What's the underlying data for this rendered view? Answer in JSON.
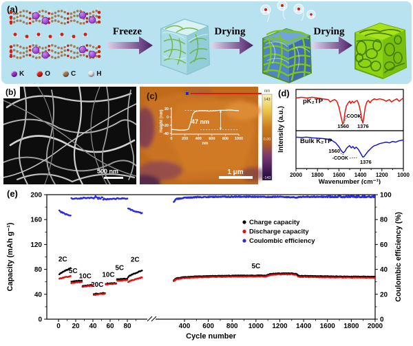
{
  "panel_a": {
    "label": "(a)",
    "steps": [
      "Freeze",
      "Drying",
      "Drying"
    ],
    "legend": [
      {
        "element": "K",
        "color": "#9a2fd6"
      },
      {
        "element": "O",
        "color": "#e8220f"
      },
      {
        "element": "C",
        "color": "#a57a52"
      },
      {
        "element": "H",
        "color": "#e4e4e4"
      }
    ]
  },
  "panel_b": {
    "label": "(b)",
    "scale_bar": "500 nm"
  },
  "panel_c": {
    "label": "(c)",
    "scale_bar": "1 μm",
    "colorbar": {
      "unit": "nm",
      "max": "143",
      "mid": "0.00",
      "min": "-143"
    },
    "inset_chart_data": {
      "type": "line",
      "xlabel": "nm",
      "ylabel": "Height (nm)",
      "xticks": [
        0,
        200,
        400,
        600,
        800,
        1000
      ],
      "yticks": [
        20,
        0,
        -20,
        -40
      ],
      "annotation": "47 nm",
      "profile": [
        [
          0,
          -30
        ],
        [
          60,
          -31
        ],
        [
          120,
          -32
        ],
        [
          180,
          -32
        ],
        [
          230,
          -31
        ],
        [
          255,
          -29
        ],
        [
          285,
          -14
        ],
        [
          315,
          6
        ],
        [
          345,
          13
        ],
        [
          420,
          15
        ],
        [
          500,
          15
        ],
        [
          560,
          14
        ],
        [
          640,
          15
        ],
        [
          720,
          16
        ],
        [
          800,
          16
        ],
        [
          860,
          17
        ],
        [
          920,
          16
        ],
        [
          1000,
          15
        ]
      ]
    }
  },
  "panel_d": {
    "label": "(d)",
    "chart_data": {
      "type": "line",
      "xlabel": "Wavenumber (cm⁻¹)",
      "ylabel": "Intensity (a.u.)",
      "xticks": [
        2000,
        1800,
        1600,
        1400,
        1200,
        1000
      ],
      "x_range": [
        2000,
        1000
      ],
      "series": [
        {
          "name": "pK₂TP",
          "color": "#e0150a",
          "peaks": [
            1560,
            1376
          ],
          "peak_labels": [
            "1560",
            "1376"
          ],
          "group_label": "-COOK",
          "points": [
            [
              2000,
              0.22
            ],
            [
              1950,
              0.2
            ],
            [
              1900,
              0.22
            ],
            [
              1850,
              0.2
            ],
            [
              1800,
              0.22
            ],
            [
              1750,
              0.24
            ],
            [
              1700,
              0.26
            ],
            [
              1680,
              0.32
            ],
            [
              1660,
              0.28
            ],
            [
              1640,
              0.26
            ],
            [
              1620,
              0.3
            ],
            [
              1600,
              0.45
            ],
            [
              1580,
              0.7
            ],
            [
              1565,
              0.88
            ],
            [
              1555,
              0.85
            ],
            [
              1545,
              0.6
            ],
            [
              1530,
              0.42
            ],
            [
              1515,
              0.35
            ],
            [
              1500,
              0.3
            ],
            [
              1490,
              0.36
            ],
            [
              1475,
              0.3
            ],
            [
              1460,
              0.34
            ],
            [
              1445,
              0.3
            ],
            [
              1430,
              0.28
            ],
            [
              1415,
              0.38
            ],
            [
              1400,
              0.55
            ],
            [
              1385,
              0.78
            ],
            [
              1376,
              0.86
            ],
            [
              1368,
              0.7
            ],
            [
              1355,
              0.45
            ],
            [
              1340,
              0.32
            ],
            [
              1325,
              0.28
            ],
            [
              1310,
              0.34
            ],
            [
              1295,
              0.28
            ],
            [
              1270,
              0.24
            ],
            [
              1250,
              0.26
            ],
            [
              1220,
              0.24
            ],
            [
              1190,
              0.26
            ],
            [
              1160,
              0.3
            ],
            [
              1130,
              0.26
            ],
            [
              1110,
              0.32
            ],
            [
              1090,
              0.28
            ],
            [
              1060,
              0.24
            ],
            [
              1040,
              0.3
            ],
            [
              1020,
              0.26
            ],
            [
              1000,
              0.22
            ]
          ]
        },
        {
          "name": "Bulk K₂TP",
          "color": "#1515cf",
          "peaks": [
            1560,
            1376
          ],
          "peak_labels": [
            "1560",
            "1376"
          ],
          "group_label": "-COOK",
          "points": [
            [
              2000,
              0.18
            ],
            [
              1950,
              0.19
            ],
            [
              1900,
              0.18
            ],
            [
              1850,
              0.2
            ],
            [
              1800,
              0.21
            ],
            [
              1750,
              0.22
            ],
            [
              1700,
              0.24
            ],
            [
              1660,
              0.28
            ],
            [
              1630,
              0.34
            ],
            [
              1600,
              0.45
            ],
            [
              1580,
              0.55
            ],
            [
              1560,
              0.62
            ],
            [
              1545,
              0.58
            ],
            [
              1530,
              0.5
            ],
            [
              1515,
              0.45
            ],
            [
              1500,
              0.42
            ],
            [
              1485,
              0.48
            ],
            [
              1470,
              0.44
            ],
            [
              1455,
              0.5
            ],
            [
              1440,
              0.46
            ],
            [
              1420,
              0.52
            ],
            [
              1400,
              0.62
            ],
            [
              1385,
              0.7
            ],
            [
              1376,
              0.74
            ],
            [
              1365,
              0.72
            ],
            [
              1350,
              0.66
            ],
            [
              1330,
              0.58
            ],
            [
              1310,
              0.52
            ],
            [
              1290,
              0.46
            ],
            [
              1270,
              0.42
            ],
            [
              1250,
              0.4
            ],
            [
              1220,
              0.36
            ],
            [
              1190,
              0.34
            ],
            [
              1160,
              0.32
            ],
            [
              1130,
              0.34
            ],
            [
              1100,
              0.3
            ],
            [
              1070,
              0.32
            ],
            [
              1040,
              0.28
            ],
            [
              1000,
              0.26
            ]
          ]
        }
      ]
    }
  },
  "panel_e": {
    "label": "(e)",
    "chart_data": {
      "type": "scatter",
      "xlabel": "Cycle number",
      "ylabel_left": "Capacity (mAh g⁻¹)",
      "ylabel_right": "Coulombic efficiency (%)",
      "yticks_left": [
        0,
        40,
        80,
        120,
        160,
        200
      ],
      "yticks_right": [
        0,
        20,
        40,
        60,
        80,
        100
      ],
      "xticks_before_break": [
        0,
        20,
        40,
        60,
        80
      ],
      "xticks_after_break": [
        400,
        600,
        800,
        1000,
        1200,
        1400,
        1600,
        1800,
        2000
      ],
      "legend": [
        {
          "label": "Charge capacity",
          "color": "#000000"
        },
        {
          "label": "Discharge capacity",
          "color": "#e01111"
        },
        {
          "label": "Coulombic efficiency",
          "color": "#2a2ae0"
        }
      ],
      "rate_labels": [
        {
          "text": "2C",
          "cycle": 5,
          "capacity": 93
        },
        {
          "text": "5C",
          "cycle": 17,
          "capacity": 74
        },
        {
          "text": "10C",
          "cycle": 31,
          "capacity": 66
        },
        {
          "text": "20C",
          "cycle": 45,
          "capacity": 52
        },
        {
          "text": "10C",
          "cycle": 58,
          "capacity": 68
        },
        {
          "text": "5C",
          "cycle": 71,
          "capacity": 79
        },
        {
          "text": "2C",
          "cycle": 89,
          "capacity": 92
        },
        {
          "text": "5C",
          "cycle": 1000,
          "capacity": 82
        }
      ],
      "segments": [
        {
          "rate": "2C",
          "cycle_range": [
            1,
            14
          ],
          "charge": [
            72,
            82
          ],
          "discharge": [
            65,
            69
          ],
          "ce": [
            87,
            83
          ]
        },
        {
          "rate": "5C",
          "cycle_range": [
            15,
            27
          ],
          "charge": [
            60,
            62
          ],
          "discharge": [
            58,
            60
          ],
          "ce": [
            97,
            97
          ]
        },
        {
          "rate": "10C",
          "cycle_range": [
            28,
            40
          ],
          "charge": [
            53,
            55
          ],
          "discharge": [
            52,
            54
          ],
          "ce": [
            97.5,
            97.5
          ]
        },
        {
          "rate": "20C",
          "cycle_range": [
            41,
            54
          ],
          "charge": [
            40,
            42
          ],
          "discharge": [
            39,
            41
          ],
          "ce": [
            98,
            97
          ]
        },
        {
          "rate": "10C",
          "cycle_range": [
            55,
            67
          ],
          "charge": [
            57,
            58
          ],
          "discharge": [
            56,
            57
          ],
          "ce": [
            96.5,
            96.5
          ]
        },
        {
          "rate": "5C",
          "cycle_range": [
            68,
            80
          ],
          "charge": [
            64,
            65
          ],
          "discharge": [
            62,
            63
          ],
          "ce": [
            97,
            97
          ]
        },
        {
          "rate": "2C",
          "cycle_range": [
            81,
            97
          ],
          "charge": [
            68,
            78
          ],
          "discharge": [
            60,
            67
          ],
          "ce": [
            89,
            85
          ]
        }
      ],
      "long_segment": {
        "rate": "5C",
        "cycle_range": [
          310,
          2000
        ],
        "charge_profile": [
          [
            310,
            62
          ],
          [
            330,
            65.5
          ],
          [
            400,
            67.5
          ],
          [
            500,
            68.5
          ],
          [
            700,
            69.5
          ],
          [
            900,
            70
          ],
          [
            1080,
            70
          ],
          [
            1120,
            72.5
          ],
          [
            1200,
            73.5
          ],
          [
            1300,
            73.5
          ],
          [
            1340,
            72.5
          ],
          [
            1360,
            69.5
          ],
          [
            1500,
            69
          ],
          [
            1700,
            68.5
          ],
          [
            2000,
            68
          ]
        ],
        "discharge_offset": -1.2,
        "ce_profile": [
          [
            310,
            94.5
          ],
          [
            330,
            96.5
          ],
          [
            400,
            97.5
          ],
          [
            500,
            98
          ],
          [
            700,
            98.3
          ],
          [
            900,
            98.4
          ],
          [
            1100,
            98.2
          ],
          [
            1200,
            98.4
          ],
          [
            1340,
            97.8
          ],
          [
            1400,
            98.3
          ],
          [
            1700,
            98.4
          ],
          [
            2000,
            98.4
          ]
        ]
      }
    }
  }
}
